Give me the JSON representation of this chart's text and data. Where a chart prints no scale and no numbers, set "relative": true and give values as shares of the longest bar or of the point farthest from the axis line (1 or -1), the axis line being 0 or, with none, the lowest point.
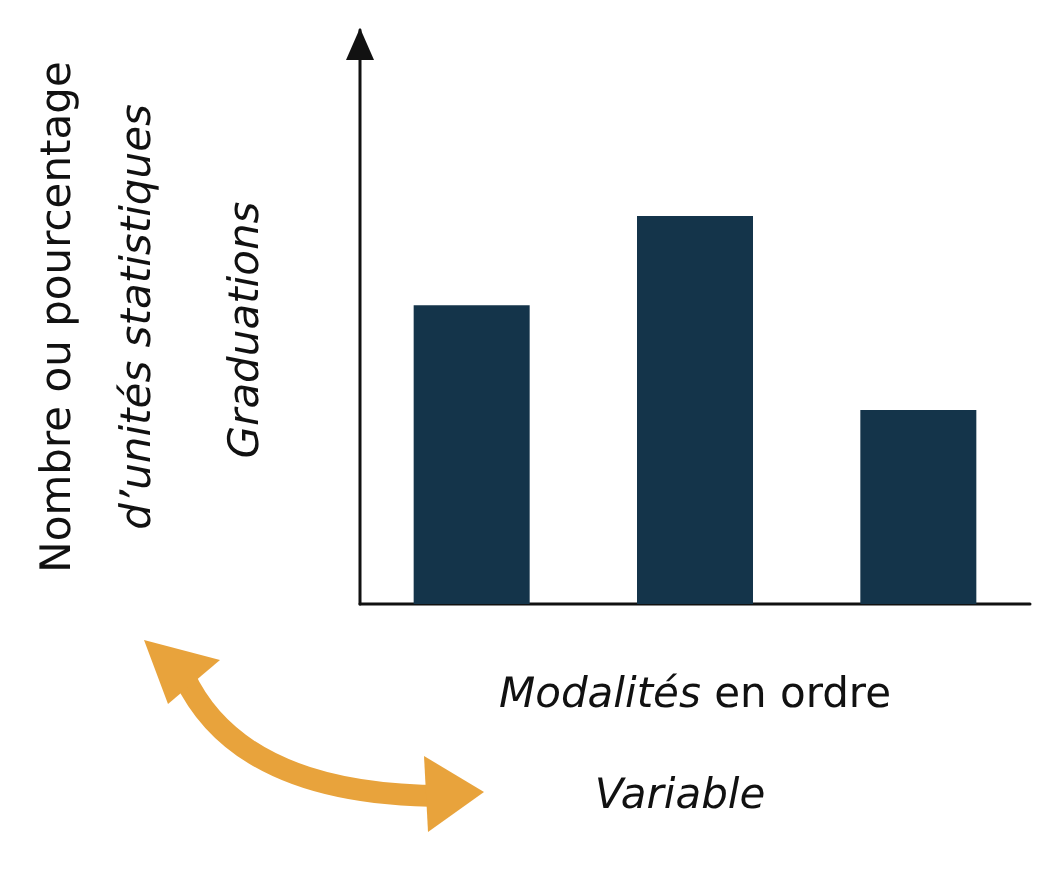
{
  "chart_data": {
    "type": "bar",
    "relative": true,
    "categories": [
      null,
      null,
      null
    ],
    "values": [
      0.77,
      1,
      0.5
    ],
    "color": "#14344a",
    "xlabel": "Modalités en ordre",
    "ylabel": "Nombre ou pourcentage d’unités statistiques",
    "annotations": [
      "Graduations",
      "Variable"
    ],
    "grid": false
  }
}
